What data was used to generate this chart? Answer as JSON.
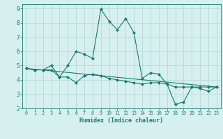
{
  "xlabel": "Humidex (Indice chaleur)",
  "ylabel": "",
  "bg_color": "#d6efef",
  "grid_color": "#b8dada",
  "line_color": "#1a7a6e",
  "xlim": [
    -0.5,
    23.5
  ],
  "ylim": [
    2.0,
    9.3
  ],
  "yticks": [
    2,
    3,
    4,
    5,
    6,
    7,
    8,
    9
  ],
  "xticks": [
    0,
    1,
    2,
    3,
    4,
    5,
    6,
    7,
    8,
    9,
    10,
    11,
    12,
    13,
    14,
    15,
    16,
    17,
    18,
    19,
    20,
    21,
    22,
    23
  ],
  "series1_x": [
    0,
    1,
    2,
    3,
    4,
    5,
    6,
    7,
    8,
    9,
    10,
    11,
    12,
    13,
    14,
    15,
    16,
    17,
    18,
    19,
    20,
    21,
    22,
    23
  ],
  "series1_y": [
    4.8,
    4.7,
    4.7,
    4.7,
    4.2,
    4.2,
    3.8,
    4.3,
    4.4,
    4.3,
    4.1,
    4.0,
    3.9,
    3.8,
    3.7,
    3.8,
    3.8,
    3.7,
    3.5,
    3.5,
    3.5,
    3.5,
    3.5,
    3.5
  ],
  "series2_x": [
    0,
    1,
    2,
    3,
    4,
    5,
    6,
    7,
    8,
    9,
    10,
    11,
    12,
    13,
    14,
    15,
    16,
    17,
    18,
    19,
    20,
    21,
    22,
    23
  ],
  "series2_y": [
    4.8,
    4.7,
    4.7,
    5.0,
    4.2,
    5.0,
    6.0,
    5.8,
    5.5,
    8.95,
    8.1,
    7.5,
    8.3,
    7.3,
    4.1,
    4.5,
    4.4,
    3.7,
    2.3,
    2.45,
    3.5,
    3.4,
    3.2,
    3.5
  ],
  "series3_x": [
    0,
    23
  ],
  "series3_y": [
    4.8,
    3.5
  ],
  "marker_size": 2.5,
  "line_width": 0.8
}
